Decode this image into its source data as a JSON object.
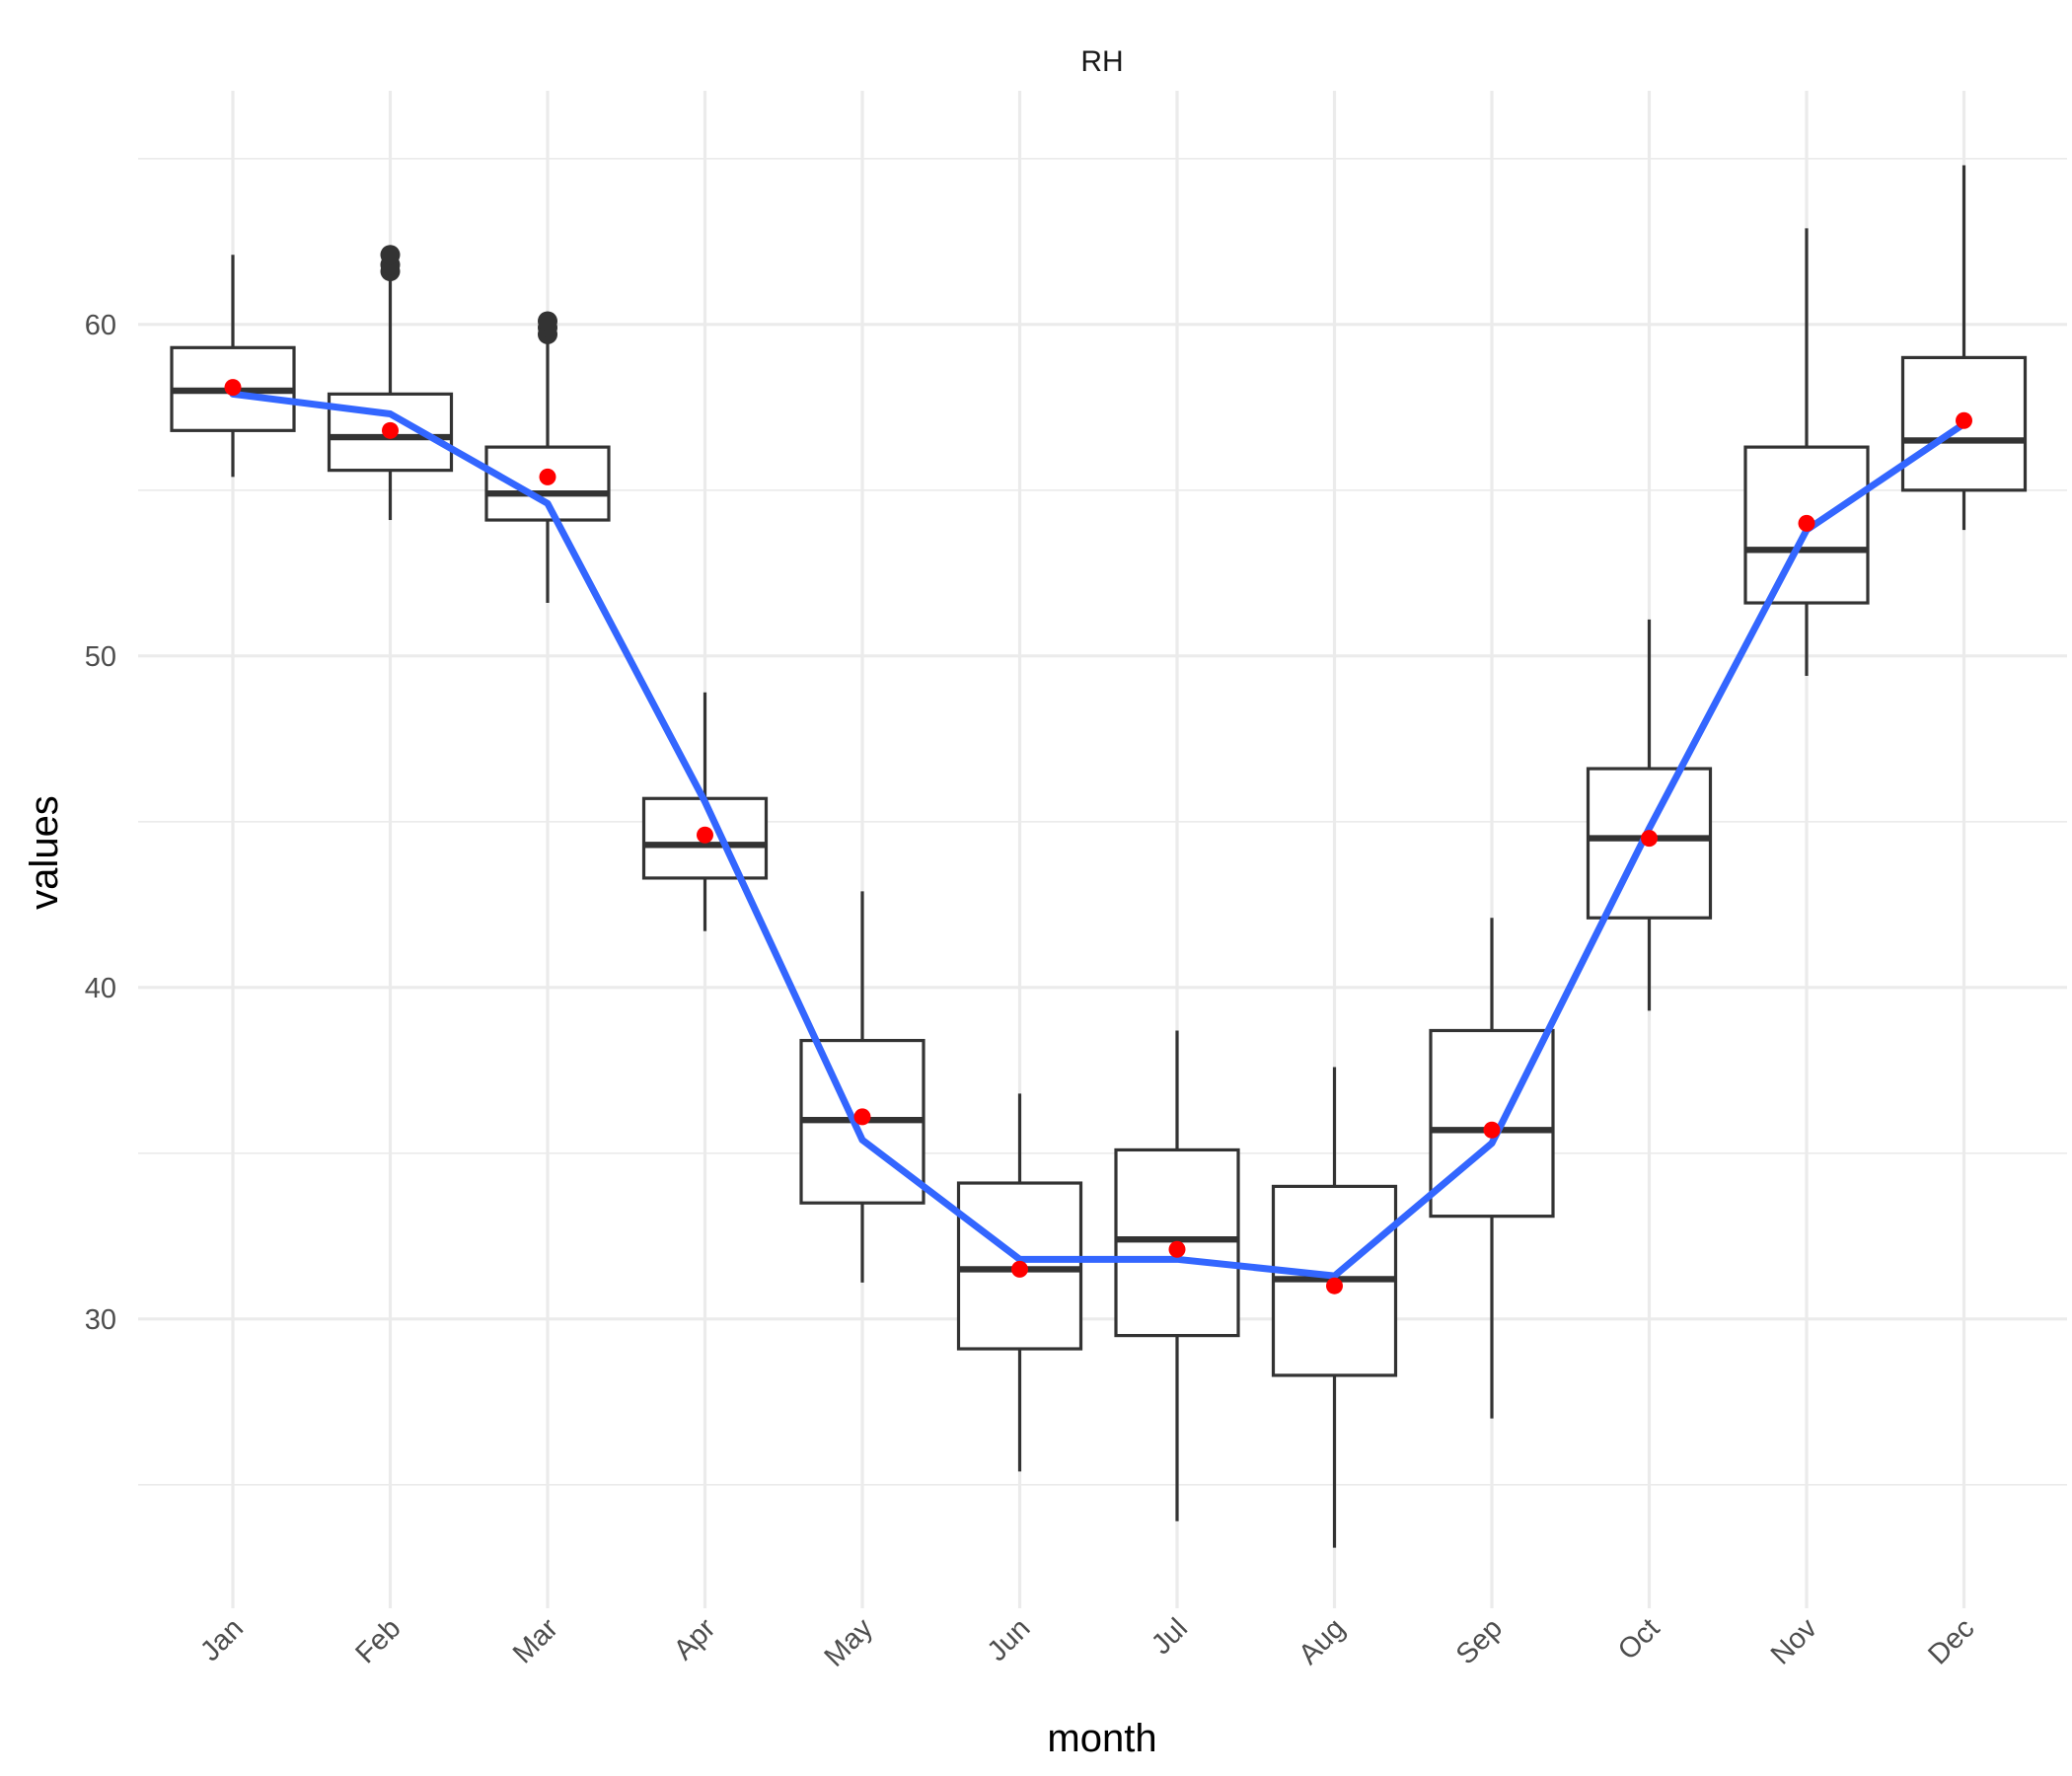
{
  "chart_data": {
    "type": "box",
    "title": "RH",
    "xlabel": "month",
    "ylabel": "values",
    "ylim": [
      22,
      66
    ],
    "yticks": [
      30,
      40,
      50,
      60
    ],
    "y_minor_ticks": [
      25,
      35,
      45,
      55,
      65
    ],
    "grid": true,
    "legend": "none",
    "categories": [
      "Jan",
      "Feb",
      "Mar",
      "Apr",
      "May",
      "Jun",
      "Jul",
      "Aug",
      "Sep",
      "Oct",
      "Nov",
      "Dec"
    ],
    "boxes": [
      {
        "month": "Jan",
        "lower_whisker": 55.4,
        "q1": 56.8,
        "median": 58.0,
        "q3": 59.3,
        "upper_whisker": 62.1,
        "outliers": []
      },
      {
        "month": "Feb",
        "lower_whisker": 54.1,
        "q1": 55.6,
        "median": 56.6,
        "q3": 57.9,
        "upper_whisker": 61.4,
        "outliers": [
          61.6,
          61.8,
          62.1
        ]
      },
      {
        "month": "Mar",
        "lower_whisker": 51.6,
        "q1": 54.1,
        "median": 54.9,
        "q3": 56.3,
        "upper_whisker": 59.5,
        "outliers": [
          59.7,
          59.9,
          60.1
        ]
      },
      {
        "month": "Apr",
        "lower_whisker": 41.7,
        "q1": 43.3,
        "median": 44.3,
        "q3": 45.7,
        "upper_whisker": 48.9,
        "outliers": []
      },
      {
        "month": "May",
        "lower_whisker": 31.1,
        "q1": 33.5,
        "median": 36.0,
        "q3": 38.4,
        "upper_whisker": 42.9,
        "outliers": []
      },
      {
        "month": "Jun",
        "lower_whisker": 25.4,
        "q1": 29.1,
        "median": 31.5,
        "q3": 34.1,
        "upper_whisker": 36.8,
        "outliers": []
      },
      {
        "month": "Jul",
        "lower_whisker": 23.9,
        "q1": 29.5,
        "median": 32.4,
        "q3": 35.1,
        "upper_whisker": 38.7,
        "outliers": []
      },
      {
        "month": "Aug",
        "lower_whisker": 23.1,
        "q1": 28.3,
        "median": 31.2,
        "q3": 34.0,
        "upper_whisker": 37.6,
        "outliers": []
      },
      {
        "month": "Sep",
        "lower_whisker": 27.0,
        "q1": 33.1,
        "median": 35.7,
        "q3": 38.7,
        "upper_whisker": 42.1,
        "outliers": []
      },
      {
        "month": "Oct",
        "lower_whisker": 39.3,
        "q1": 42.1,
        "median": 44.5,
        "q3": 46.6,
        "upper_whisker": 51.1,
        "outliers": []
      },
      {
        "month": "Nov",
        "lower_whisker": 49.4,
        "q1": 51.6,
        "median": 53.2,
        "q3": 56.3,
        "upper_whisker": 62.9,
        "outliers": []
      },
      {
        "month": "Dec",
        "lower_whisker": 53.8,
        "q1": 55.0,
        "median": 56.5,
        "q3": 59.0,
        "upper_whisker": 64.8,
        "outliers": []
      }
    ],
    "means": [
      58.1,
      56.8,
      55.4,
      44.6,
      36.1,
      31.5,
      32.1,
      31.0,
      35.7,
      44.5,
      54.0,
      57.1
    ],
    "trend_line": [
      57.9,
      57.3,
      54.6,
      45.6,
      35.4,
      31.8,
      31.8,
      31.3,
      35.3,
      44.8,
      53.8,
      57.0
    ],
    "colors": {
      "mean_points": "#ff0000",
      "trend_line": "#3366ff",
      "box_stroke": "#333333",
      "grid": "#ebebeb"
    }
  }
}
